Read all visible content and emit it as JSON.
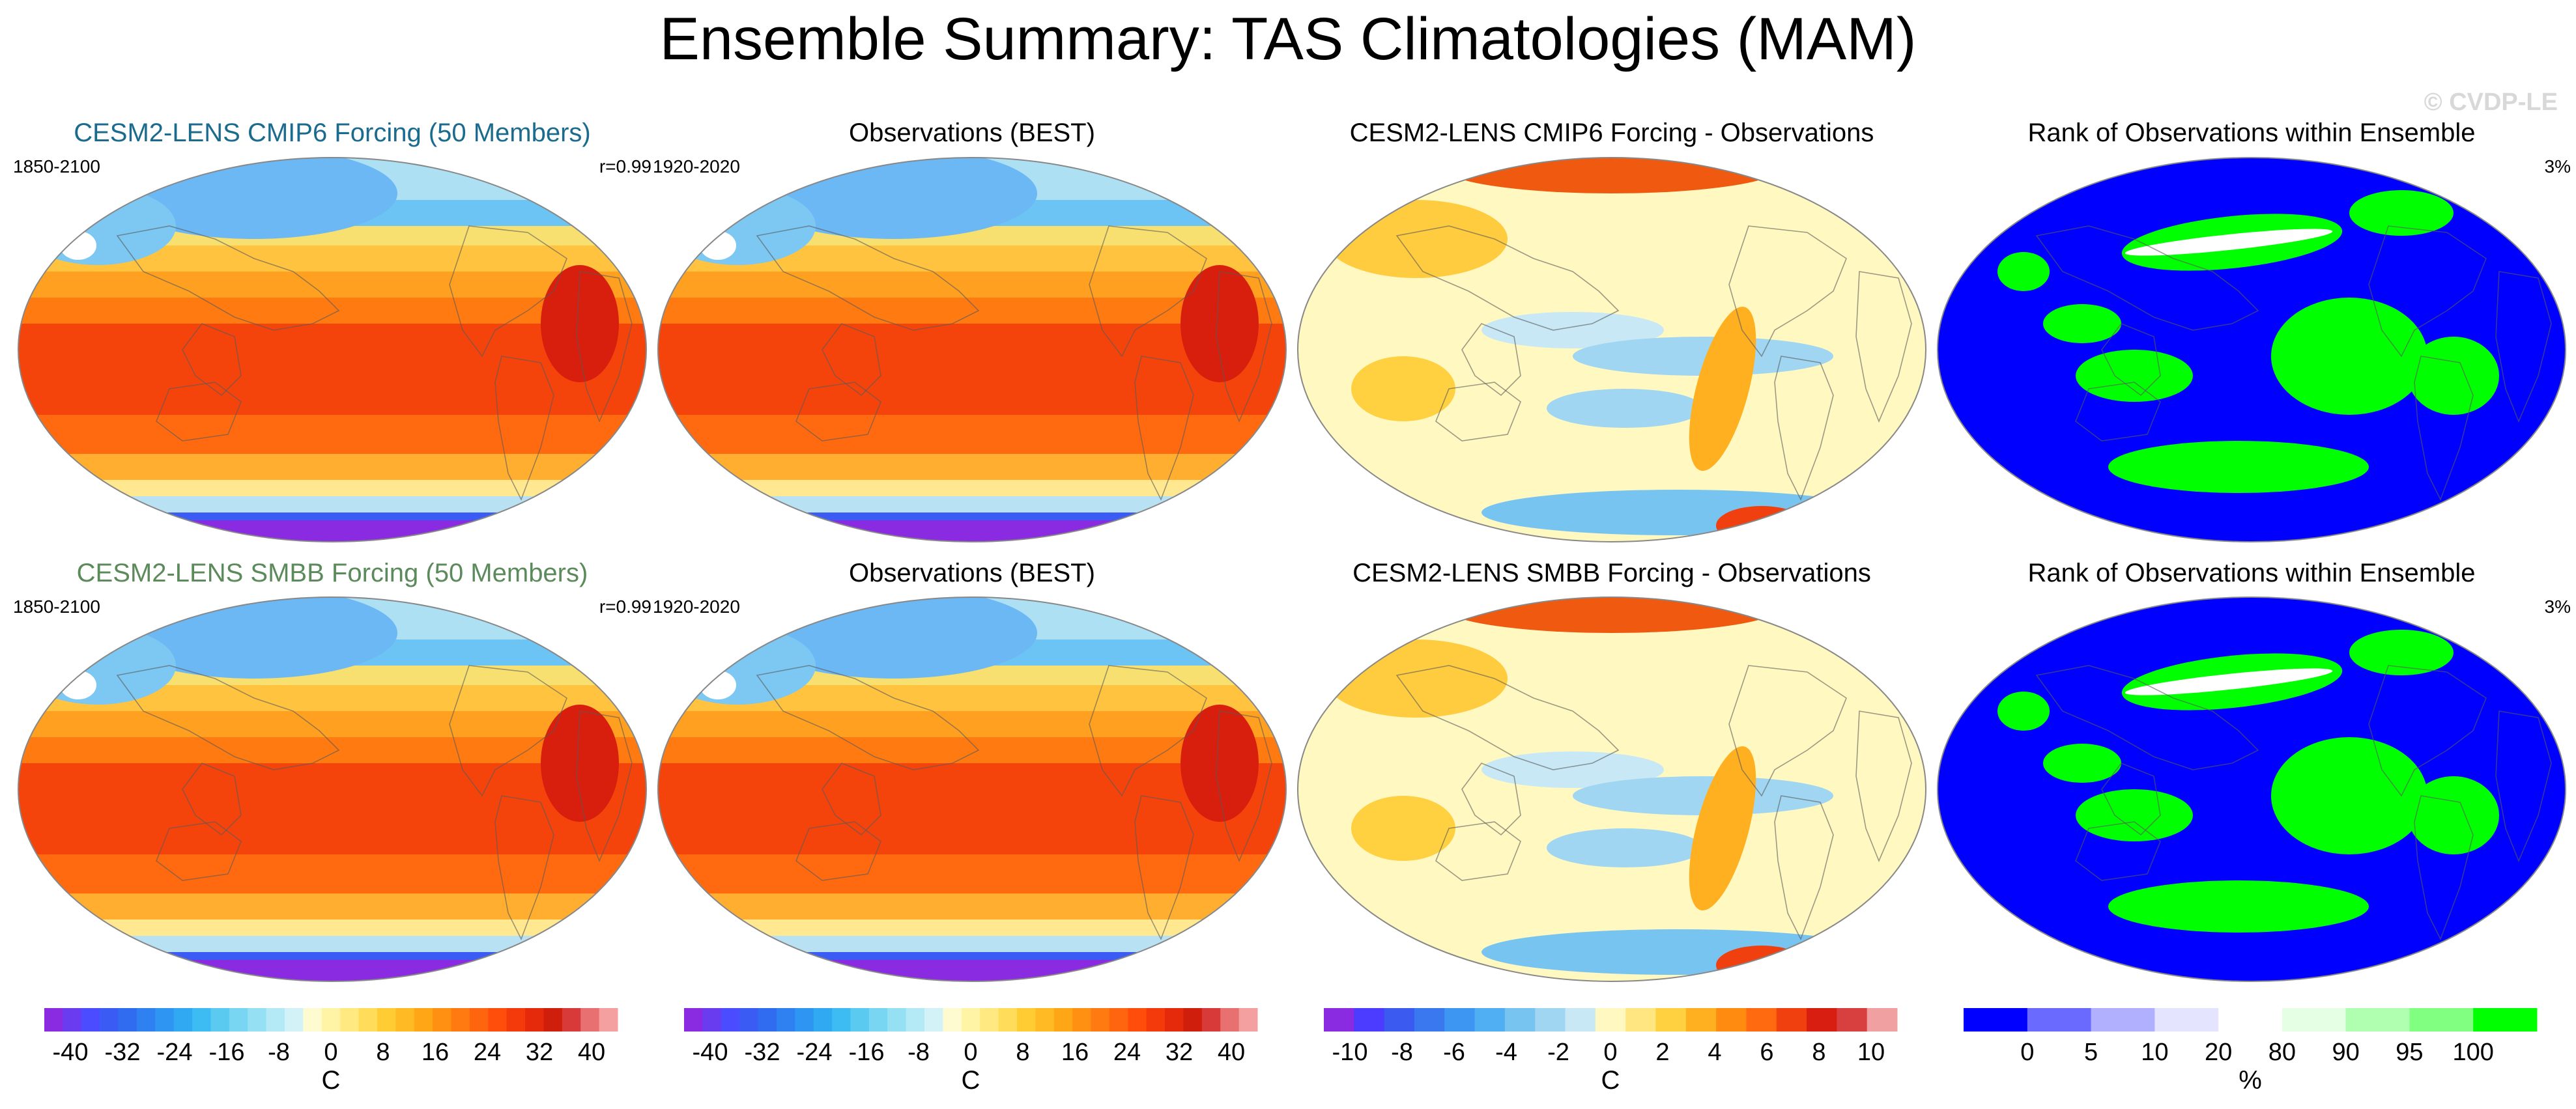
{
  "figure_title": "Ensemble Summary: TAS Climatologies (MAM)",
  "watermark": "© CVDP-LE",
  "chart_data": [
    {
      "type": "heatmap",
      "title": "CESM2-LENS CMIP6 Forcing (50 Members)",
      "title_color": "#1b6b8e",
      "left_label": "1850-2100",
      "right_label": "r=0.99",
      "field": "climatology",
      "units": "C"
    },
    {
      "type": "heatmap",
      "title": "Observations (BEST)",
      "title_color": "#000000",
      "left_label": "1920-2020",
      "right_label": "",
      "field": "climatology",
      "units": "C"
    },
    {
      "type": "heatmap",
      "title": "CESM2-LENS CMIP6 Forcing - Observations",
      "title_color": "#000000",
      "left_label": "",
      "right_label": "",
      "field": "difference",
      "units": "C"
    },
    {
      "type": "heatmap",
      "title": "Rank of Observations within Ensemble",
      "title_color": "#000000",
      "left_label": "",
      "right_label": "3%",
      "field": "rank",
      "units": "%"
    },
    {
      "type": "heatmap",
      "title": "CESM2-LENS SMBB Forcing (50 Members)",
      "title_color": "#5b8a5b",
      "left_label": "1850-2100",
      "right_label": "r=0.99",
      "field": "climatology",
      "units": "C"
    },
    {
      "type": "heatmap",
      "title": "Observations (BEST)",
      "title_color": "#000000",
      "left_label": "1920-2020",
      "right_label": "",
      "field": "climatology",
      "units": "C"
    },
    {
      "type": "heatmap",
      "title": "CESM2-LENS SMBB Forcing - Observations",
      "title_color": "#000000",
      "left_label": "",
      "right_label": "",
      "field": "difference",
      "units": "C"
    },
    {
      "type": "heatmap",
      "title": "Rank of Observations within Ensemble",
      "title_color": "#000000",
      "left_label": "",
      "right_label": "3%",
      "field": "rank",
      "units": "%"
    }
  ],
  "colorbars": [
    {
      "label": "C",
      "range": [
        -44,
        44
      ],
      "tick_values": [
        -40,
        -32,
        -24,
        -16,
        -8,
        0,
        8,
        16,
        24,
        32,
        40
      ],
      "tick_labels": [
        "-40",
        "-32",
        "-24",
        "-16",
        "-8",
        "0",
        "8",
        "16",
        "24",
        "32",
        "40"
      ],
      "colors": [
        "#8a2be2",
        "#6a3cf0",
        "#4b4bff",
        "#3a5cf5",
        "#2f6cf0",
        "#2f80f0",
        "#2f95f2",
        "#30a8f2",
        "#3cbcf2",
        "#5acaf0",
        "#78d6f2",
        "#96e0f4",
        "#b4eaf6",
        "#d2f2f8",
        "#fffbd0",
        "#fff4a6",
        "#ffe980",
        "#ffdc5a",
        "#ffcc33",
        "#ffba24",
        "#ffa616",
        "#ff9012",
        "#ff7a10",
        "#ff640e",
        "#ff4e0c",
        "#f43a0a",
        "#e42a0a",
        "#d01e0c",
        "#d83a3a",
        "#e87070",
        "#f4a0a0"
      ]
    },
    {
      "label": "C",
      "range": [
        -44,
        44
      ],
      "tick_values": [
        -40,
        -32,
        -24,
        -16,
        -8,
        0,
        8,
        16,
        24,
        32,
        40
      ],
      "tick_labels": [
        "-40",
        "-32",
        "-24",
        "-16",
        "-8",
        "0",
        "8",
        "16",
        "24",
        "32",
        "40"
      ],
      "colors": [
        "#8a2be2",
        "#6a3cf0",
        "#4b4bff",
        "#3a5cf5",
        "#2f6cf0",
        "#2f80f0",
        "#2f95f2",
        "#30a8f2",
        "#3cbcf2",
        "#5acaf0",
        "#78d6f2",
        "#96e0f4",
        "#b4eaf6",
        "#d2f2f8",
        "#fffbd0",
        "#fff4a6",
        "#ffe980",
        "#ffdc5a",
        "#ffcc33",
        "#ffba24",
        "#ffa616",
        "#ff9012",
        "#ff7a10",
        "#ff640e",
        "#ff4e0c",
        "#f43a0a",
        "#e42a0a",
        "#d01e0c",
        "#d83a3a",
        "#e87070",
        "#f4a0a0"
      ]
    },
    {
      "label": "C",
      "range": [
        -11,
        11
      ],
      "tick_values": [
        -10,
        -8,
        -6,
        -4,
        -2,
        0,
        2,
        4,
        6,
        8,
        10
      ],
      "tick_labels": [
        "-10",
        "-8",
        "-6",
        "-4",
        "-2",
        "0",
        "2",
        "4",
        "6",
        "8",
        "10"
      ],
      "colors": [
        "#8a2be2",
        "#4b3cff",
        "#3a5af0",
        "#3a78f0",
        "#3c96f2",
        "#50aef2",
        "#78c4f0",
        "#a0d6f2",
        "#c8e8f6",
        "#fff8c0",
        "#ffe680",
        "#ffd040",
        "#ffb020",
        "#ff8c10",
        "#ff6a10",
        "#f04010",
        "#d81e10",
        "#d84040",
        "#f0a0a0"
      ]
    },
    {
      "label": "%",
      "range": [
        0,
        100
      ],
      "tick_values": [
        0,
        5,
        10,
        20,
        80,
        90,
        95,
        100
      ],
      "tick_labels": [
        "0",
        "5",
        "10",
        "20",
        "80",
        "90",
        "95",
        "100"
      ],
      "colors": [
        "#0000ff",
        "#6a6aff",
        "#b0b0ff",
        "#e4e4ff",
        "#ffffff",
        "#e4ffe4",
        "#b0ffb0",
        "#80ff80",
        "#00ff00"
      ]
    }
  ]
}
